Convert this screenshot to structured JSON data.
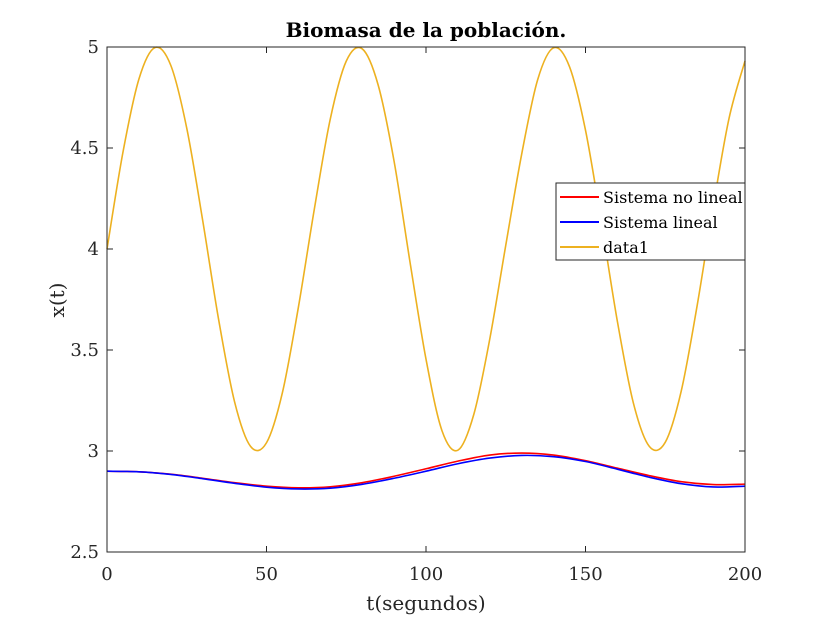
{
  "chart_data": {
    "type": "line",
    "title": "Biomasa de la población.",
    "xlabel": "t(segundos)",
    "ylabel": "x(t)",
    "xlim": [
      0,
      200
    ],
    "ylim": [
      2.5,
      5
    ],
    "xticks": [
      0,
      50,
      100,
      150,
      200
    ],
    "xtick_labels": [
      "0",
      "50",
      "100",
      "150",
      "200"
    ],
    "yticks": [
      2.5,
      3,
      3.5,
      4,
      4.5,
      5
    ],
    "ytick_labels": [
      "2.5",
      "3",
      "3.5",
      "4",
      "4.5",
      "5"
    ],
    "grid": false,
    "legend_position": "right",
    "series": [
      {
        "name": "Sistema no lineal",
        "color": "#ff0000",
        "x": [
          0,
          10,
          20,
          30,
          40,
          50,
          60,
          70,
          80,
          90,
          100,
          110,
          120,
          130,
          140,
          150,
          160,
          170,
          180,
          190,
          200
        ],
        "y": [
          2.9,
          2.897,
          2.885,
          2.865,
          2.843,
          2.826,
          2.818,
          2.823,
          2.843,
          2.875,
          2.912,
          2.95,
          2.98,
          2.99,
          2.98,
          2.952,
          2.915,
          2.878,
          2.848,
          2.834,
          2.836
        ]
      },
      {
        "name": "Sistema lineal",
        "color": "#0000ff",
        "x": [
          0,
          10,
          20,
          30,
          40,
          50,
          60,
          70,
          80,
          90,
          100,
          110,
          120,
          130,
          140,
          150,
          160,
          170,
          180,
          190,
          200
        ],
        "y": [
          2.9,
          2.897,
          2.884,
          2.863,
          2.84,
          2.821,
          2.812,
          2.816,
          2.835,
          2.865,
          2.9,
          2.937,
          2.965,
          2.978,
          2.972,
          2.948,
          2.91,
          2.87,
          2.838,
          2.822,
          2.826
        ]
      },
      {
        "name": "data1",
        "color": "#edb120",
        "x": [
          0,
          5,
          10,
          15,
          20,
          25,
          30,
          35,
          40,
          45,
          50,
          55,
          60,
          65,
          70,
          75,
          80,
          85,
          90,
          95,
          100,
          105,
          110,
          115,
          120,
          125,
          130,
          135,
          140,
          145,
          150,
          155,
          160,
          165,
          170,
          175,
          180,
          185,
          190,
          195,
          200
        ],
        "y": [
          4.0,
          4.479,
          4.841,
          4.997,
          4.909,
          4.598,
          4.141,
          3.65,
          3.243,
          3.023,
          3.041,
          3.29,
          3.712,
          4.198,
          4.644,
          4.93,
          4.991,
          4.812,
          4.434,
          3.934,
          3.455,
          3.101,
          3.004,
          3.182,
          3.555,
          4.018,
          4.47,
          4.838,
          4.996,
          4.902,
          4.588,
          4.129,
          3.641,
          3.238,
          3.023,
          3.043,
          3.296,
          3.72,
          4.206,
          4.647,
          4.931
        ]
      }
    ]
  }
}
